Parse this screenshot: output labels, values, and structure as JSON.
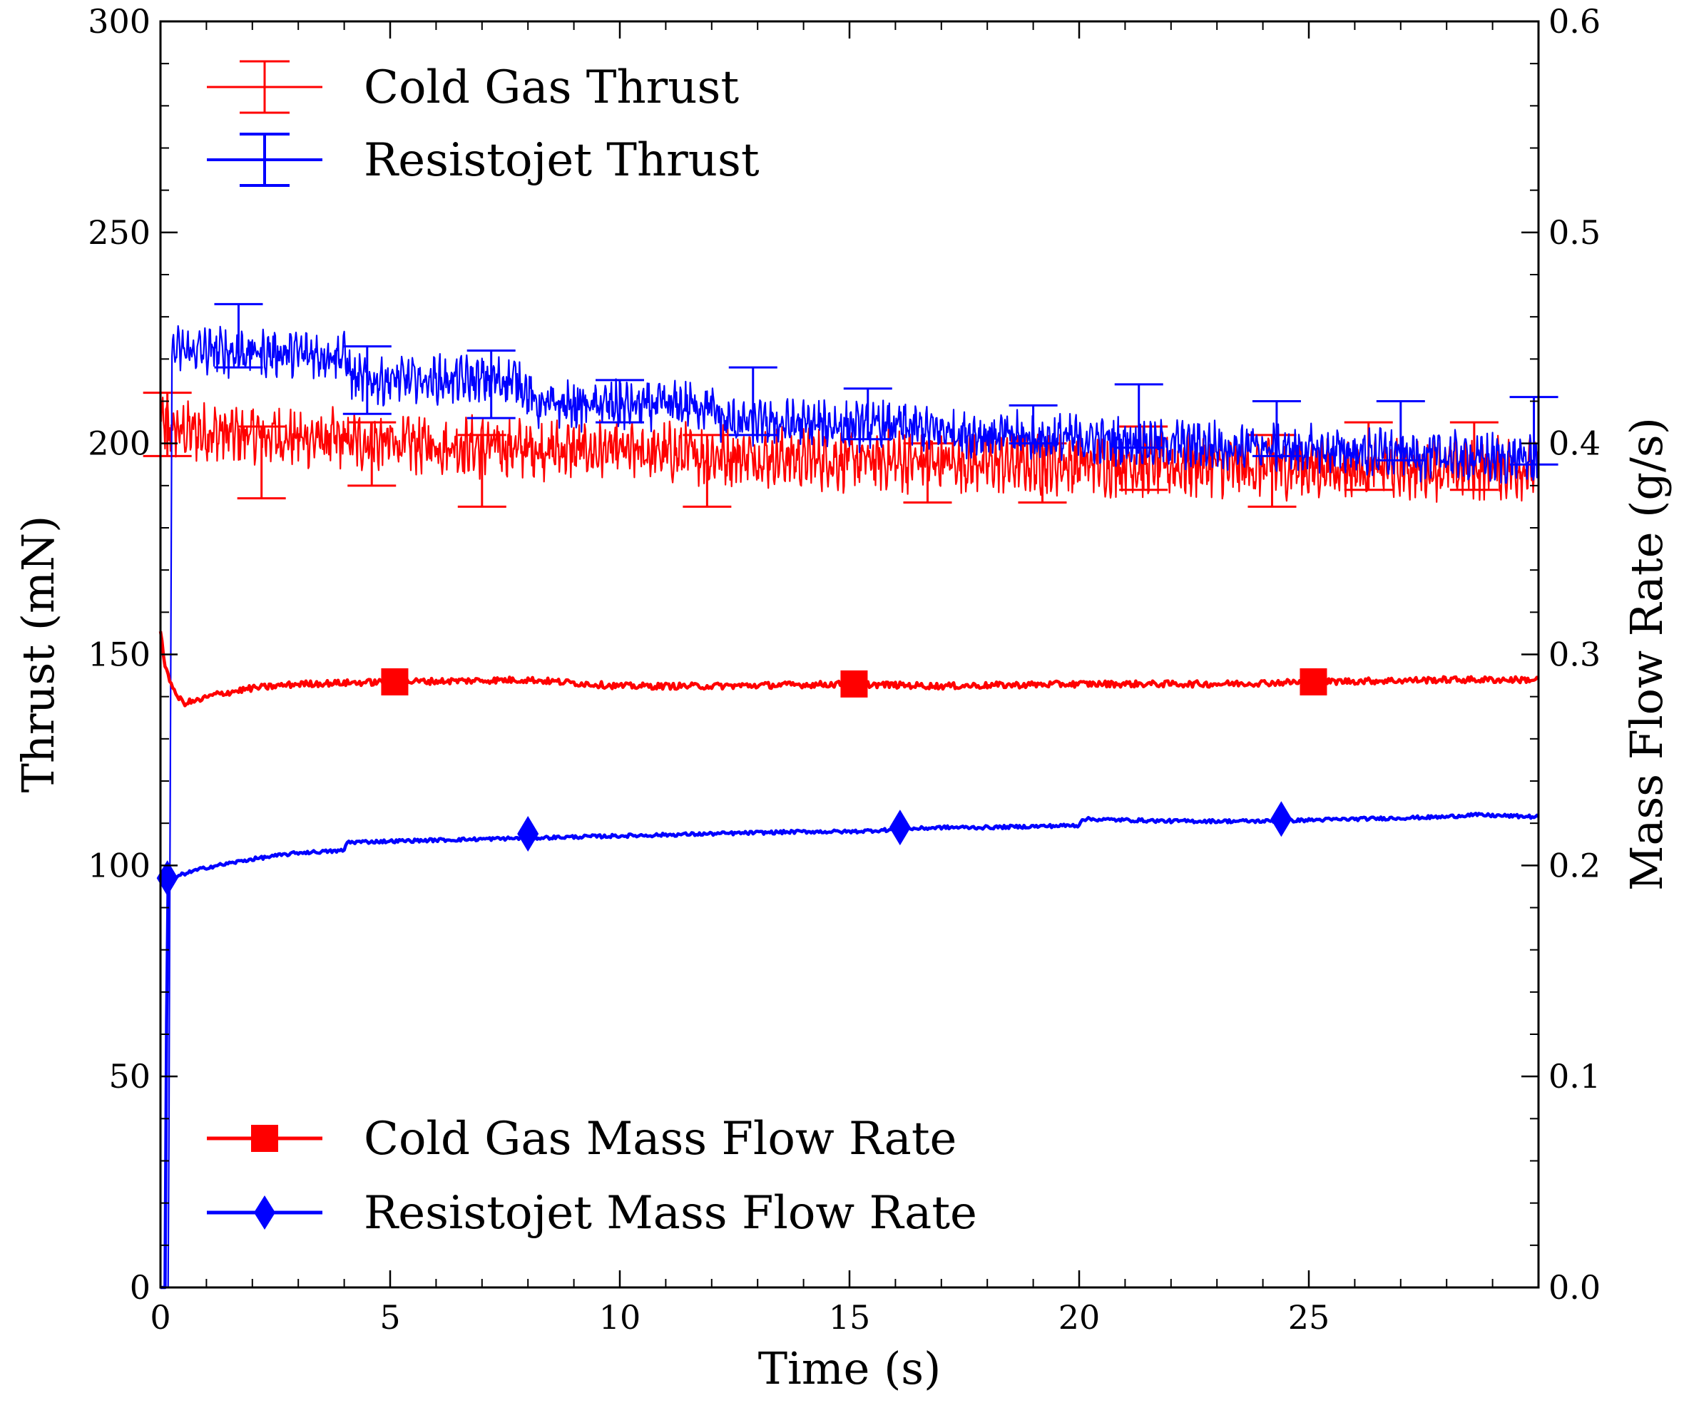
{
  "chart_data": {
    "type": "line",
    "title": "",
    "xlabel": "Time (s)",
    "ylabel": "Thrust (mN)",
    "y2label": "Mass Flow Rate (g/s)",
    "xlim": [
      0,
      30
    ],
    "ylim": [
      0,
      300
    ],
    "y2lim": [
      0,
      0.6
    ],
    "grid": false,
    "x_ticks": [
      0,
      5,
      10,
      15,
      20,
      25
    ],
    "x_tick_labels": [
      "0",
      "5",
      "10",
      "15",
      "20",
      "25"
    ],
    "y_ticks": [
      0,
      50,
      100,
      150,
      200,
      250,
      300
    ],
    "y_tick_labels": [
      "0",
      "50",
      "100",
      "150",
      "200",
      "250",
      "300"
    ],
    "y2_ticks": [
      0,
      0.1,
      0.2,
      0.3,
      0.4,
      0.5,
      0.6
    ],
    "y2_tick_labels": [
      "0.0",
      "0.1",
      "0.2",
      "0.3",
      "0.4",
      "0.5",
      "0.6"
    ],
    "colors": {
      "cold_gas": "#ff0000",
      "resistojet": "#0000ff"
    },
    "legend_top": {
      "location": "upper-left",
      "entries": [
        "Cold Gas Thrust",
        "Resistojet Thrust"
      ]
    },
    "legend_bottom": {
      "location": "lower-left",
      "entries": [
        "Cold Gas Mass Flow Rate",
        "Resistojet Mass Flow Rate"
      ]
    },
    "series": [
      {
        "name": "Cold Gas Thrust",
        "axis": "left",
        "color": "#ff0000",
        "noise_amplitude": 5,
        "trend": {
          "x": [
            0,
            0.3,
            5,
            10,
            15,
            20,
            25,
            30
          ],
          "y": [
            205,
            203,
            200,
            198,
            196,
            195,
            194,
            194
          ]
        },
        "errorbars": [
          {
            "x": 0.15,
            "low": 197,
            "high": 212
          },
          {
            "x": 2.2,
            "low": 187,
            "high": 204
          },
          {
            "x": 4.6,
            "low": 190,
            "high": 205
          },
          {
            "x": 7.0,
            "low": 185,
            "high": 202
          },
          {
            "x": 11.9,
            "low": 185,
            "high": 202
          },
          {
            "x": 16.7,
            "low": 186,
            "high": 200
          },
          {
            "x": 19.2,
            "low": 186,
            "high": 200
          },
          {
            "x": 21.4,
            "low": 189,
            "high": 204
          },
          {
            "x": 24.2,
            "low": 185,
            "high": 202
          },
          {
            "x": 26.3,
            "low": 189,
            "high": 205
          },
          {
            "x": 28.6,
            "low": 189,
            "high": 205
          }
        ]
      },
      {
        "name": "Resistojet Thrust",
        "axis": "left",
        "color": "#0000ff",
        "noise_amplitude": 4,
        "trend": {
          "x": [
            0,
            0.17,
            0.25,
            0.5,
            4,
            4.2,
            7.8,
            8.2,
            11.9,
            12.3,
            16,
            18,
            22,
            26,
            30
          ],
          "y": [
            0,
            0,
            222,
            222,
            221,
            215,
            215,
            209,
            209,
            205,
            204,
            202,
            200,
            198,
            196
          ]
        },
        "errorbars": [
          {
            "x": 1.7,
            "low": 218,
            "high": 233
          },
          {
            "x": 4.5,
            "low": 207,
            "high": 223
          },
          {
            "x": 7.2,
            "low": 206,
            "high": 222
          },
          {
            "x": 10.0,
            "low": 205,
            "high": 215
          },
          {
            "x": 12.9,
            "low": 202,
            "high": 218
          },
          {
            "x": 15.4,
            "low": 201,
            "high": 213
          },
          {
            "x": 19.0,
            "low": 200,
            "high": 209
          },
          {
            "x": 21.3,
            "low": 199,
            "high": 214
          },
          {
            "x": 24.3,
            "low": 197,
            "high": 210
          },
          {
            "x": 27.0,
            "low": 196,
            "high": 210
          },
          {
            "x": 29.9,
            "low": 195,
            "high": 211
          }
        ]
      },
      {
        "name": "Cold Gas Mass Flow Rate",
        "axis": "right",
        "color": "#ff0000",
        "marker": "square",
        "noise_amplitude": 0.0015,
        "x": [
          0,
          0.1,
          0.3,
          0.5,
          0.8,
          1.2,
          2,
          3,
          5,
          8,
          10,
          12,
          15,
          17,
          20,
          23,
          25,
          28,
          30
        ],
        "y": [
          0.31,
          0.295,
          0.282,
          0.277,
          0.278,
          0.281,
          0.284,
          0.286,
          0.287,
          0.288,
          0.285,
          0.285,
          0.286,
          0.285,
          0.286,
          0.286,
          0.287,
          0.288,
          0.288
        ],
        "marker_x": [
          5.1,
          15.1,
          25.1
        ],
        "marker_y": [
          0.287,
          0.286,
          0.287
        ]
      },
      {
        "name": "Resistojet Mass Flow Rate",
        "axis": "right",
        "color": "#0000ff",
        "marker": "diamond",
        "noise_amplitude": 0.0008,
        "x": [
          0,
          0.1,
          0.15,
          0.2,
          0.5,
          1,
          1.5,
          2,
          3,
          4,
          4.05,
          6,
          8,
          10,
          12,
          14,
          15,
          17,
          18,
          20,
          20.05,
          22,
          24,
          26,
          28,
          28.5,
          30
        ],
        "y": [
          0.0,
          0.0,
          0.19,
          0.193,
          0.196,
          0.199,
          0.201,
          0.203,
          0.206,
          0.207,
          0.211,
          0.212,
          0.213,
          0.214,
          0.215,
          0.216,
          0.216,
          0.218,
          0.218,
          0.219,
          0.222,
          0.221,
          0.221,
          0.222,
          0.223,
          0.224,
          0.223
        ],
        "marker_x": [
          0.15,
          8.0,
          16.1,
          24.4
        ],
        "marker_y": [
          0.194,
          0.215,
          0.218,
          0.222
        ]
      }
    ]
  }
}
